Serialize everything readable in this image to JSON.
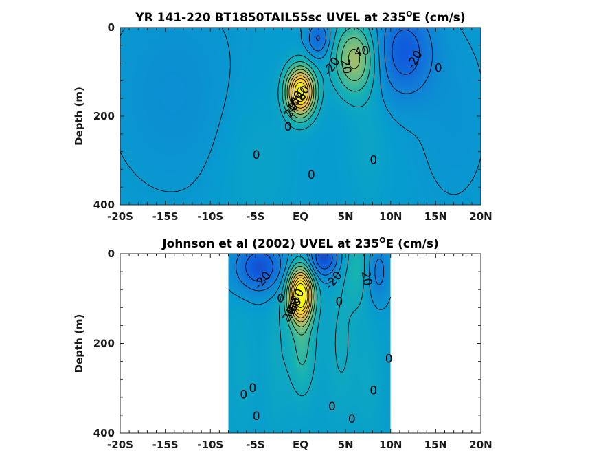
{
  "chart_data": [
    {
      "type": "contour",
      "title_main": "YR 141-220 BT1850TAIL55sc UVEL at 235",
      "title_sup": "O",
      "title_tail": "E (cm/s)",
      "ylabel": "Depth (m)",
      "xlim": [
        -20,
        20
      ],
      "ylim": [
        0,
        400
      ],
      "y_reversed": true,
      "xticks": [
        -20,
        -15,
        -10,
        -5,
        0,
        5,
        10,
        15,
        20
      ],
      "xtick_labels": [
        "-20S",
        "-15S",
        "-10S",
        "-5S",
        "EQ",
        "5N",
        "10N",
        "15N",
        "20N"
      ],
      "yticks": [
        0,
        200,
        400
      ],
      "ytick_labels": [
        "0",
        "200",
        "400"
      ],
      "data_xrange": [
        -20,
        20
      ],
      "colormap": "parula",
      "clim": [
        -40,
        100
      ],
      "background_value": 2,
      "features": [
        {
          "lat": 0,
          "depth": 145,
          "amp": 92,
          "sx": 1.1,
          "sy": 38
        },
        {
          "lat": 6,
          "depth": 70,
          "amp": 42,
          "sx": 1.6,
          "sy": 55
        },
        {
          "lat": 2.0,
          "depth": 25,
          "amp": -24,
          "sx": 0.9,
          "sy": 28
        },
        {
          "lat": 11.5,
          "depth": 55,
          "amp": -28,
          "sx": 2.2,
          "sy": 70
        },
        {
          "lat": 7.5,
          "depth": 260,
          "amp": 5,
          "sx": 1.5,
          "sy": 100
        },
        {
          "lat": -5,
          "depth": 300,
          "amp": 4,
          "sx": 3.0,
          "sy": 120
        },
        {
          "lat": -14,
          "depth": 150,
          "amp": -6,
          "sx": 5.0,
          "sy": 150
        },
        {
          "lat": 17,
          "depth": 200,
          "amp": -4,
          "sx": 3.0,
          "sy": 150
        }
      ],
      "contour_labels": [
        {
          "text": "40",
          "lat": 6.8,
          "depth": 55,
          "rot": -10
        },
        {
          "text": "-20",
          "lat": 3.5,
          "depth": 88,
          "rot": -55
        },
        {
          "text": "20",
          "lat": 5.0,
          "depth": 88,
          "rot": 80
        },
        {
          "text": "-20",
          "lat": 12.7,
          "depth": 73,
          "rot": -60
        },
        {
          "text": "0",
          "lat": 15.3,
          "depth": 92,
          "rot": 0
        },
        {
          "text": "80",
          "lat": 0.3,
          "depth": 148,
          "rot": -60
        },
        {
          "text": "60",
          "lat": -0.4,
          "depth": 160,
          "rot": -60
        },
        {
          "text": "40",
          "lat": -0.7,
          "depth": 175,
          "rot": -60
        },
        {
          "text": "20",
          "lat": -1.0,
          "depth": 187,
          "rot": -60
        },
        {
          "text": "0",
          "lat": -1.4,
          "depth": 225,
          "rot": 0
        },
        {
          "text": "0",
          "lat": -4.9,
          "depth": 288,
          "rot": 0
        },
        {
          "text": "0",
          "lat": 1.2,
          "depth": 333,
          "rot": 0
        },
        {
          "text": "0",
          "lat": 8.1,
          "depth": 300,
          "rot": 0
        }
      ]
    },
    {
      "type": "contour",
      "title_main": "Johnson et al (2002) UVEL at 235",
      "title_sup": "O",
      "title_tail": "E (cm/s)",
      "ylabel": "Depth (m)",
      "xlim": [
        -20,
        20
      ],
      "ylim": [
        0,
        400
      ],
      "y_reversed": true,
      "xticks": [
        -20,
        -15,
        -10,
        -5,
        0,
        5,
        10,
        15,
        20
      ],
      "xtick_labels": [
        "-20S",
        "-15S",
        "-10S",
        "-5S",
        "EQ",
        "5N",
        "10N",
        "15N",
        "20N"
      ],
      "yticks": [
        0,
        200,
        400
      ],
      "ytick_labels": [
        "0",
        "200",
        "400"
      ],
      "data_xrange": [
        -8,
        10
      ],
      "colormap": "parula",
      "clim": [
        -40,
        100
      ],
      "background_value": 3,
      "features": [
        {
          "lat": 0,
          "depth": 90,
          "amp": 100,
          "sx": 0.95,
          "sy": 40
        },
        {
          "lat": 0.2,
          "depth": 200,
          "amp": 20,
          "sx": 1.0,
          "sy": 80
        },
        {
          "lat": -4.5,
          "depth": 30,
          "amp": -32,
          "sx": 2.0,
          "sy": 40
        },
        {
          "lat": 2.6,
          "depth": 10,
          "amp": -34,
          "sx": 1.2,
          "sy": 30
        },
        {
          "lat": 6.5,
          "depth": 30,
          "amp": 15,
          "sx": 1.1,
          "sy": 60
        },
        {
          "lat": 8.5,
          "depth": 40,
          "amp": -18,
          "sx": 1.0,
          "sy": 50
        },
        {
          "lat": 4.5,
          "depth": 200,
          "amp": 8,
          "sx": 1.2,
          "sy": 120
        },
        {
          "lat": -2.5,
          "depth": 220,
          "amp": 6,
          "sx": 1.0,
          "sy": 120
        },
        {
          "lat": 7.5,
          "depth": 280,
          "amp": 5,
          "sx": 1.0,
          "sy": 100
        },
        {
          "lat": -6.5,
          "depth": 250,
          "amp": 4,
          "sx": 1.0,
          "sy": 100
        }
      ],
      "contour_labels": [
        {
          "text": "-20",
          "lat": -4.2,
          "depth": 60,
          "rot": -50
        },
        {
          "text": "-20",
          "lat": 3.7,
          "depth": 60,
          "rot": -50
        },
        {
          "text": "20",
          "lat": 7.3,
          "depth": 55,
          "rot": 80
        },
        {
          "text": "80",
          "lat": -0.3,
          "depth": 95,
          "rot": -60
        },
        {
          "text": "0",
          "lat": -2.2,
          "depth": 100,
          "rot": 0
        },
        {
          "text": "60",
          "lat": -0.6,
          "depth": 115,
          "rot": -60
        },
        {
          "text": "40",
          "lat": -0.9,
          "depth": 125,
          "rot": -60
        },
        {
          "text": "20",
          "lat": -1.2,
          "depth": 135,
          "rot": -60
        },
        {
          "text": "0",
          "lat": 4.3,
          "depth": 108,
          "rot": 0
        },
        {
          "text": "0",
          "lat": 9.8,
          "depth": 235,
          "rot": 0
        },
        {
          "text": "0",
          "lat": -6.3,
          "depth": 315,
          "rot": 0
        },
        {
          "text": "0",
          "lat": -5.3,
          "depth": 300,
          "rot": 0
        },
        {
          "text": "0",
          "lat": 8.1,
          "depth": 306,
          "rot": 0
        },
        {
          "text": "0",
          "lat": 3.5,
          "depth": 342,
          "rot": 0
        },
        {
          "text": "0",
          "lat": -4.9,
          "depth": 363,
          "rot": 0
        },
        {
          "text": "0",
          "lat": 5.7,
          "depth": 369,
          "rot": 0
        }
      ]
    }
  ]
}
